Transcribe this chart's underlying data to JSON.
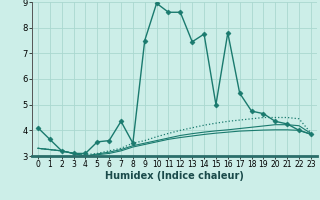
{
  "xlabel": "Humidex (Indice chaleur)",
  "background_color": "#cceee8",
  "grid_color": "#aad8d0",
  "line_color": "#1a7a6e",
  "border_bottom_color": "#2a6e6a",
  "xlim": [
    -0.5,
    23.5
  ],
  "ylim": [
    3,
    9
  ],
  "xticks": [
    0,
    1,
    2,
    3,
    4,
    5,
    6,
    7,
    8,
    9,
    10,
    11,
    12,
    13,
    14,
    15,
    16,
    17,
    18,
    19,
    20,
    21,
    22,
    23
  ],
  "yticks": [
    3,
    4,
    5,
    6,
    7,
    8,
    9
  ],
  "lines": [
    {
      "x": [
        0,
        1,
        2,
        3,
        4,
        5,
        6,
        7,
        8,
        9,
        10,
        11,
        12,
        13,
        14,
        15,
        16,
        17,
        18,
        19,
        20,
        21,
        22,
        23
      ],
      "y": [
        4.1,
        3.65,
        3.2,
        3.1,
        3.1,
        3.55,
        3.6,
        4.35,
        3.5,
        7.5,
        8.95,
        8.6,
        8.6,
        7.45,
        7.75,
        5.0,
        7.8,
        5.45,
        4.75,
        4.65,
        4.35,
        4.25,
        4.0,
        3.85
      ],
      "style": "-",
      "marker": "D",
      "markersize": 2.5,
      "linewidth": 1.0
    },
    {
      "x": [
        0,
        1,
        2,
        3,
        4,
        5,
        6,
        7,
        8,
        9,
        10,
        11,
        12,
        13,
        14,
        15,
        16,
        17,
        18,
        19,
        20,
        21,
        22,
        23
      ],
      "y": [
        3.3,
        3.25,
        3.2,
        3.1,
        3.05,
        3.1,
        3.2,
        3.3,
        3.5,
        3.6,
        3.75,
        3.88,
        4.0,
        4.1,
        4.2,
        4.28,
        4.35,
        4.4,
        4.45,
        4.5,
        4.5,
        4.5,
        4.45,
        3.9
      ],
      "style": ":",
      "marker": null,
      "markersize": 0,
      "linewidth": 0.9
    },
    {
      "x": [
        0,
        1,
        2,
        3,
        4,
        5,
        6,
        7,
        8,
        9,
        10,
        11,
        12,
        13,
        14,
        15,
        16,
        17,
        18,
        19,
        20,
        21,
        22,
        23
      ],
      "y": [
        3.3,
        3.25,
        3.2,
        3.1,
        3.0,
        3.08,
        3.15,
        3.25,
        3.4,
        3.5,
        3.6,
        3.7,
        3.8,
        3.87,
        3.93,
        3.98,
        4.02,
        4.07,
        4.12,
        4.17,
        4.22,
        4.22,
        4.18,
        3.88
      ],
      "style": "-",
      "marker": null,
      "markersize": 0,
      "linewidth": 0.8
    },
    {
      "x": [
        0,
        1,
        2,
        3,
        4,
        5,
        6,
        7,
        8,
        9,
        10,
        11,
        12,
        13,
        14,
        15,
        16,
        17,
        18,
        19,
        20,
        21,
        22,
        23
      ],
      "y": [
        3.3,
        3.25,
        3.2,
        3.1,
        3.0,
        3.05,
        3.1,
        3.2,
        3.35,
        3.45,
        3.55,
        3.65,
        3.72,
        3.78,
        3.84,
        3.89,
        3.93,
        3.97,
        3.99,
        4.01,
        4.02,
        4.02,
        4.0,
        3.85
      ],
      "style": "-",
      "marker": null,
      "markersize": 0,
      "linewidth": 0.8
    }
  ]
}
